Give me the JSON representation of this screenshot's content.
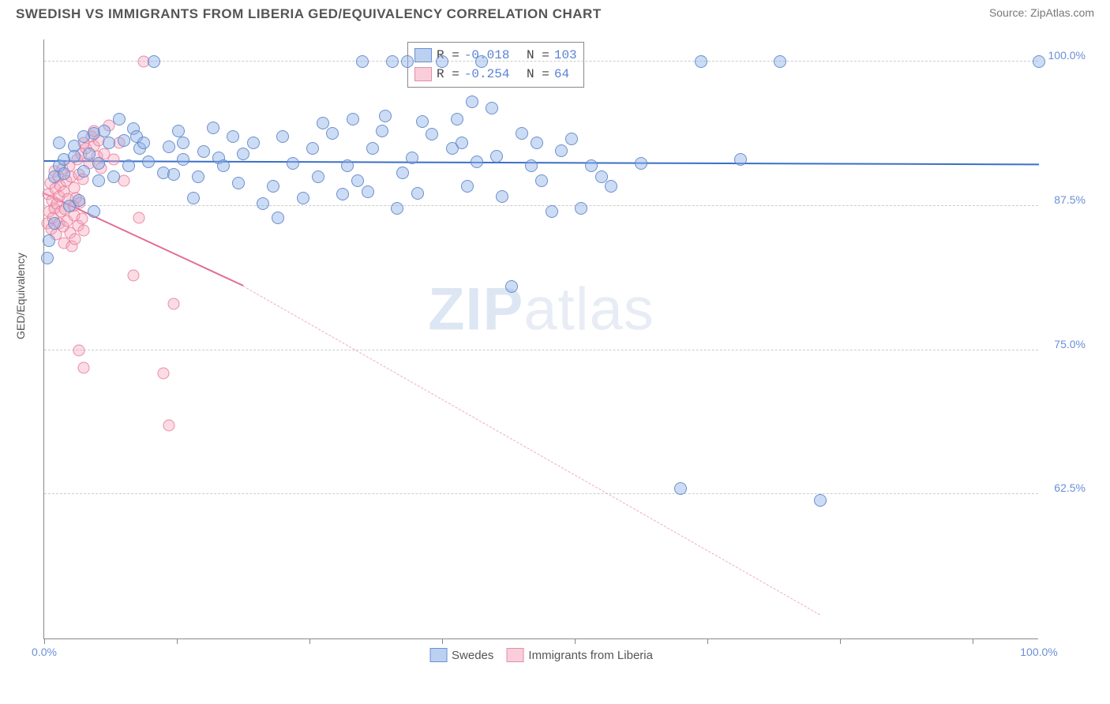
{
  "header": {
    "title": "SWEDISH VS IMMIGRANTS FROM LIBERIA GED/EQUIVALENCY CORRELATION CHART",
    "source": "Source: ZipAtlas.com"
  },
  "chart": {
    "type": "scatter",
    "ylabel": "GED/Equivalency",
    "xlim": [
      0,
      100
    ],
    "ylim": [
      50,
      102
    ],
    "background_color": "#ffffff",
    "grid_color": "#cccccc",
    "axis_color": "#888888",
    "yticks": [
      {
        "val": 62.5,
        "label": "62.5%"
      },
      {
        "val": 75.0,
        "label": "75.0%"
      },
      {
        "val": 87.5,
        "label": "87.5%"
      },
      {
        "val": 100.0,
        "label": "100.0%"
      }
    ],
    "xticks_major": [
      0,
      13.3,
      26.7,
      40,
      53.3,
      66.7,
      80,
      93.3
    ],
    "xtick_labels": [
      {
        "val": 0,
        "label": "0.0%"
      },
      {
        "val": 100,
        "label": "100.0%"
      }
    ],
    "watermark": {
      "prefix": "ZIP",
      "suffix": "atlas"
    },
    "stats_legend": {
      "rows": [
        {
          "swatch": "blue",
          "r_label": "R =",
          "r": "-0.018",
          "n_label": "N =",
          "n": "103"
        },
        {
          "swatch": "pink",
          "r_label": "R =",
          "r": "-0.254",
          "n_label": "N =",
          "n": " 64"
        }
      ]
    },
    "bottom_legend": [
      {
        "swatch": "blue",
        "label": "Swedes"
      },
      {
        "swatch": "pink",
        "label": "Immigrants from Liberia"
      }
    ],
    "series": {
      "blue": {
        "color_fill": "rgba(143,178,230,0.45)",
        "color_stroke": "rgba(90,130,200,0.85)",
        "marker_size": 16,
        "trendline": {
          "x0": 0,
          "y0": 91.3,
          "x1": 100,
          "y1": 91.0,
          "color": "#3b6fc9"
        },
        "points": [
          [
            0.5,
            84.5
          ],
          [
            1,
            86
          ],
          [
            1,
            90
          ],
          [
            1.5,
            91
          ],
          [
            1.5,
            93
          ],
          [
            0.3,
            83
          ],
          [
            2,
            91.5
          ],
          [
            2,
            90.3
          ],
          [
            2.5,
            87.5
          ],
          [
            3,
            92.7
          ],
          [
            3,
            91.8
          ],
          [
            3.5,
            88
          ],
          [
            4,
            93.5
          ],
          [
            4,
            90.5
          ],
          [
            4.5,
            92
          ],
          [
            5,
            93.8
          ],
          [
            5,
            87
          ],
          [
            5.5,
            89.7
          ],
          [
            5.5,
            91.2
          ],
          [
            6,
            94
          ],
          [
            6.5,
            93
          ],
          [
            7,
            90
          ],
          [
            7.5,
            95
          ],
          [
            8,
            93.2
          ],
          [
            8.5,
            91
          ],
          [
            9,
            94.2
          ],
          [
            9.3,
            93.5
          ],
          [
            9.6,
            92.5
          ],
          [
            10,
            93
          ],
          [
            10.5,
            91.3
          ],
          [
            11,
            100
          ],
          [
            12,
            90.4
          ],
          [
            12.5,
            92.6
          ],
          [
            13,
            90.2
          ],
          [
            13.5,
            94
          ],
          [
            14,
            91.5
          ],
          [
            14,
            93
          ],
          [
            15,
            88.2
          ],
          [
            15.5,
            90
          ],
          [
            16,
            92.2
          ],
          [
            17,
            94.3
          ],
          [
            17.5,
            91.7
          ],
          [
            18,
            91
          ],
          [
            19,
            93.5
          ],
          [
            19.5,
            89.5
          ],
          [
            20,
            92
          ],
          [
            21,
            93
          ],
          [
            22,
            87.7
          ],
          [
            23,
            89.2
          ],
          [
            23.5,
            86.5
          ],
          [
            24,
            93.5
          ],
          [
            25,
            91.2
          ],
          [
            26,
            88.2
          ],
          [
            27,
            92.5
          ],
          [
            27.5,
            90
          ],
          [
            28,
            94.7
          ],
          [
            29,
            93.8
          ],
          [
            30,
            88.5
          ],
          [
            30.5,
            91
          ],
          [
            31,
            95
          ],
          [
            31.5,
            89.7
          ],
          [
            32,
            100
          ],
          [
            32.5,
            88.7
          ],
          [
            33,
            92.5
          ],
          [
            34,
            94
          ],
          [
            34.3,
            95.3
          ],
          [
            35,
            100
          ],
          [
            35.5,
            87.3
          ],
          [
            36,
            90.4
          ],
          [
            36.5,
            100
          ],
          [
            37,
            91.7
          ],
          [
            37.5,
            88.6
          ],
          [
            38,
            94.8
          ],
          [
            39,
            93.7
          ],
          [
            40,
            100
          ],
          [
            41,
            92.5
          ],
          [
            41.5,
            95
          ],
          [
            42,
            93
          ],
          [
            42.5,
            89.2
          ],
          [
            43,
            96.5
          ],
          [
            43.5,
            91.3
          ],
          [
            44,
            100
          ],
          [
            45,
            96
          ],
          [
            45.5,
            91.8
          ],
          [
            46,
            88.3
          ],
          [
            47,
            80.5
          ],
          [
            48,
            93.8
          ],
          [
            49,
            91
          ],
          [
            49.5,
            93
          ],
          [
            50,
            89.7
          ],
          [
            51,
            87
          ],
          [
            52,
            92.3
          ],
          [
            53,
            93.3
          ],
          [
            54,
            87.3
          ],
          [
            55,
            91
          ],
          [
            56,
            90
          ],
          [
            57,
            89.2
          ],
          [
            60,
            91.2
          ],
          [
            64,
            63
          ],
          [
            66,
            100
          ],
          [
            70,
            91.5
          ],
          [
            74,
            100
          ],
          [
            78,
            62
          ],
          [
            100,
            100
          ]
        ]
      },
      "pink": {
        "color_fill": "rgba(244,166,188,0.40)",
        "color_stroke": "rgba(230,120,150,0.8)",
        "marker_size": 15,
        "trendline_solid": {
          "x0": 0,
          "y0": 88.5,
          "x1": 20,
          "y1": 80.5,
          "color": "#e46a95"
        },
        "trendline_dash": {
          "x0": 20,
          "y0": 80.5,
          "x1": 78,
          "y1": 52,
          "color": "#f0aac0"
        },
        "points": [
          [
            0.3,
            86
          ],
          [
            0.4,
            88.5
          ],
          [
            0.5,
            87
          ],
          [
            0.6,
            89.5
          ],
          [
            0.7,
            85.5
          ],
          [
            0.8,
            88
          ],
          [
            0.9,
            86.5
          ],
          [
            1,
            90.5
          ],
          [
            1,
            87.3
          ],
          [
            1.1,
            89
          ],
          [
            1.2,
            85
          ],
          [
            1.3,
            87.7
          ],
          [
            1.4,
            90
          ],
          [
            1.5,
            88.3
          ],
          [
            1.5,
            86
          ],
          [
            1.6,
            89.3
          ],
          [
            1.7,
            87
          ],
          [
            1.8,
            90.7
          ],
          [
            1.9,
            85.7
          ],
          [
            2,
            88.7
          ],
          [
            2,
            84.3
          ],
          [
            2.1,
            87.2
          ],
          [
            2.2,
            89.7
          ],
          [
            2.3,
            86.2
          ],
          [
            2.4,
            88.1
          ],
          [
            2.5,
            91
          ],
          [
            2.6,
            85.2
          ],
          [
            2.7,
            90
          ],
          [
            2.8,
            84
          ],
          [
            2.9,
            87.5
          ],
          [
            3,
            89.1
          ],
          [
            3,
            86.7
          ],
          [
            3.1,
            84.6
          ],
          [
            3.2,
            88.2
          ],
          [
            3.3,
            91.5
          ],
          [
            3.4,
            85.8
          ],
          [
            3.5,
            90.2
          ],
          [
            3.6,
            87.8
          ],
          [
            3.7,
            92
          ],
          [
            3.8,
            86.4
          ],
          [
            3.9,
            89.8
          ],
          [
            4,
            93
          ],
          [
            4,
            85.4
          ],
          [
            4.2,
            92.5
          ],
          [
            4.5,
            91.2
          ],
          [
            4.8,
            93.5
          ],
          [
            5,
            92.7
          ],
          [
            5,
            94
          ],
          [
            5.3,
            91.8
          ],
          [
            5.5,
            93.2
          ],
          [
            5.7,
            90.8
          ],
          [
            6,
            92
          ],
          [
            6.5,
            94.5
          ],
          [
            7,
            91.5
          ],
          [
            7.5,
            93
          ],
          [
            8,
            89.7
          ],
          [
            9,
            81.5
          ],
          [
            9.5,
            86.5
          ],
          [
            10,
            100
          ],
          [
            3.5,
            75
          ],
          [
            4,
            73.5
          ],
          [
            12,
            73
          ],
          [
            12.5,
            68.5
          ],
          [
            13,
            79
          ]
        ]
      }
    }
  }
}
